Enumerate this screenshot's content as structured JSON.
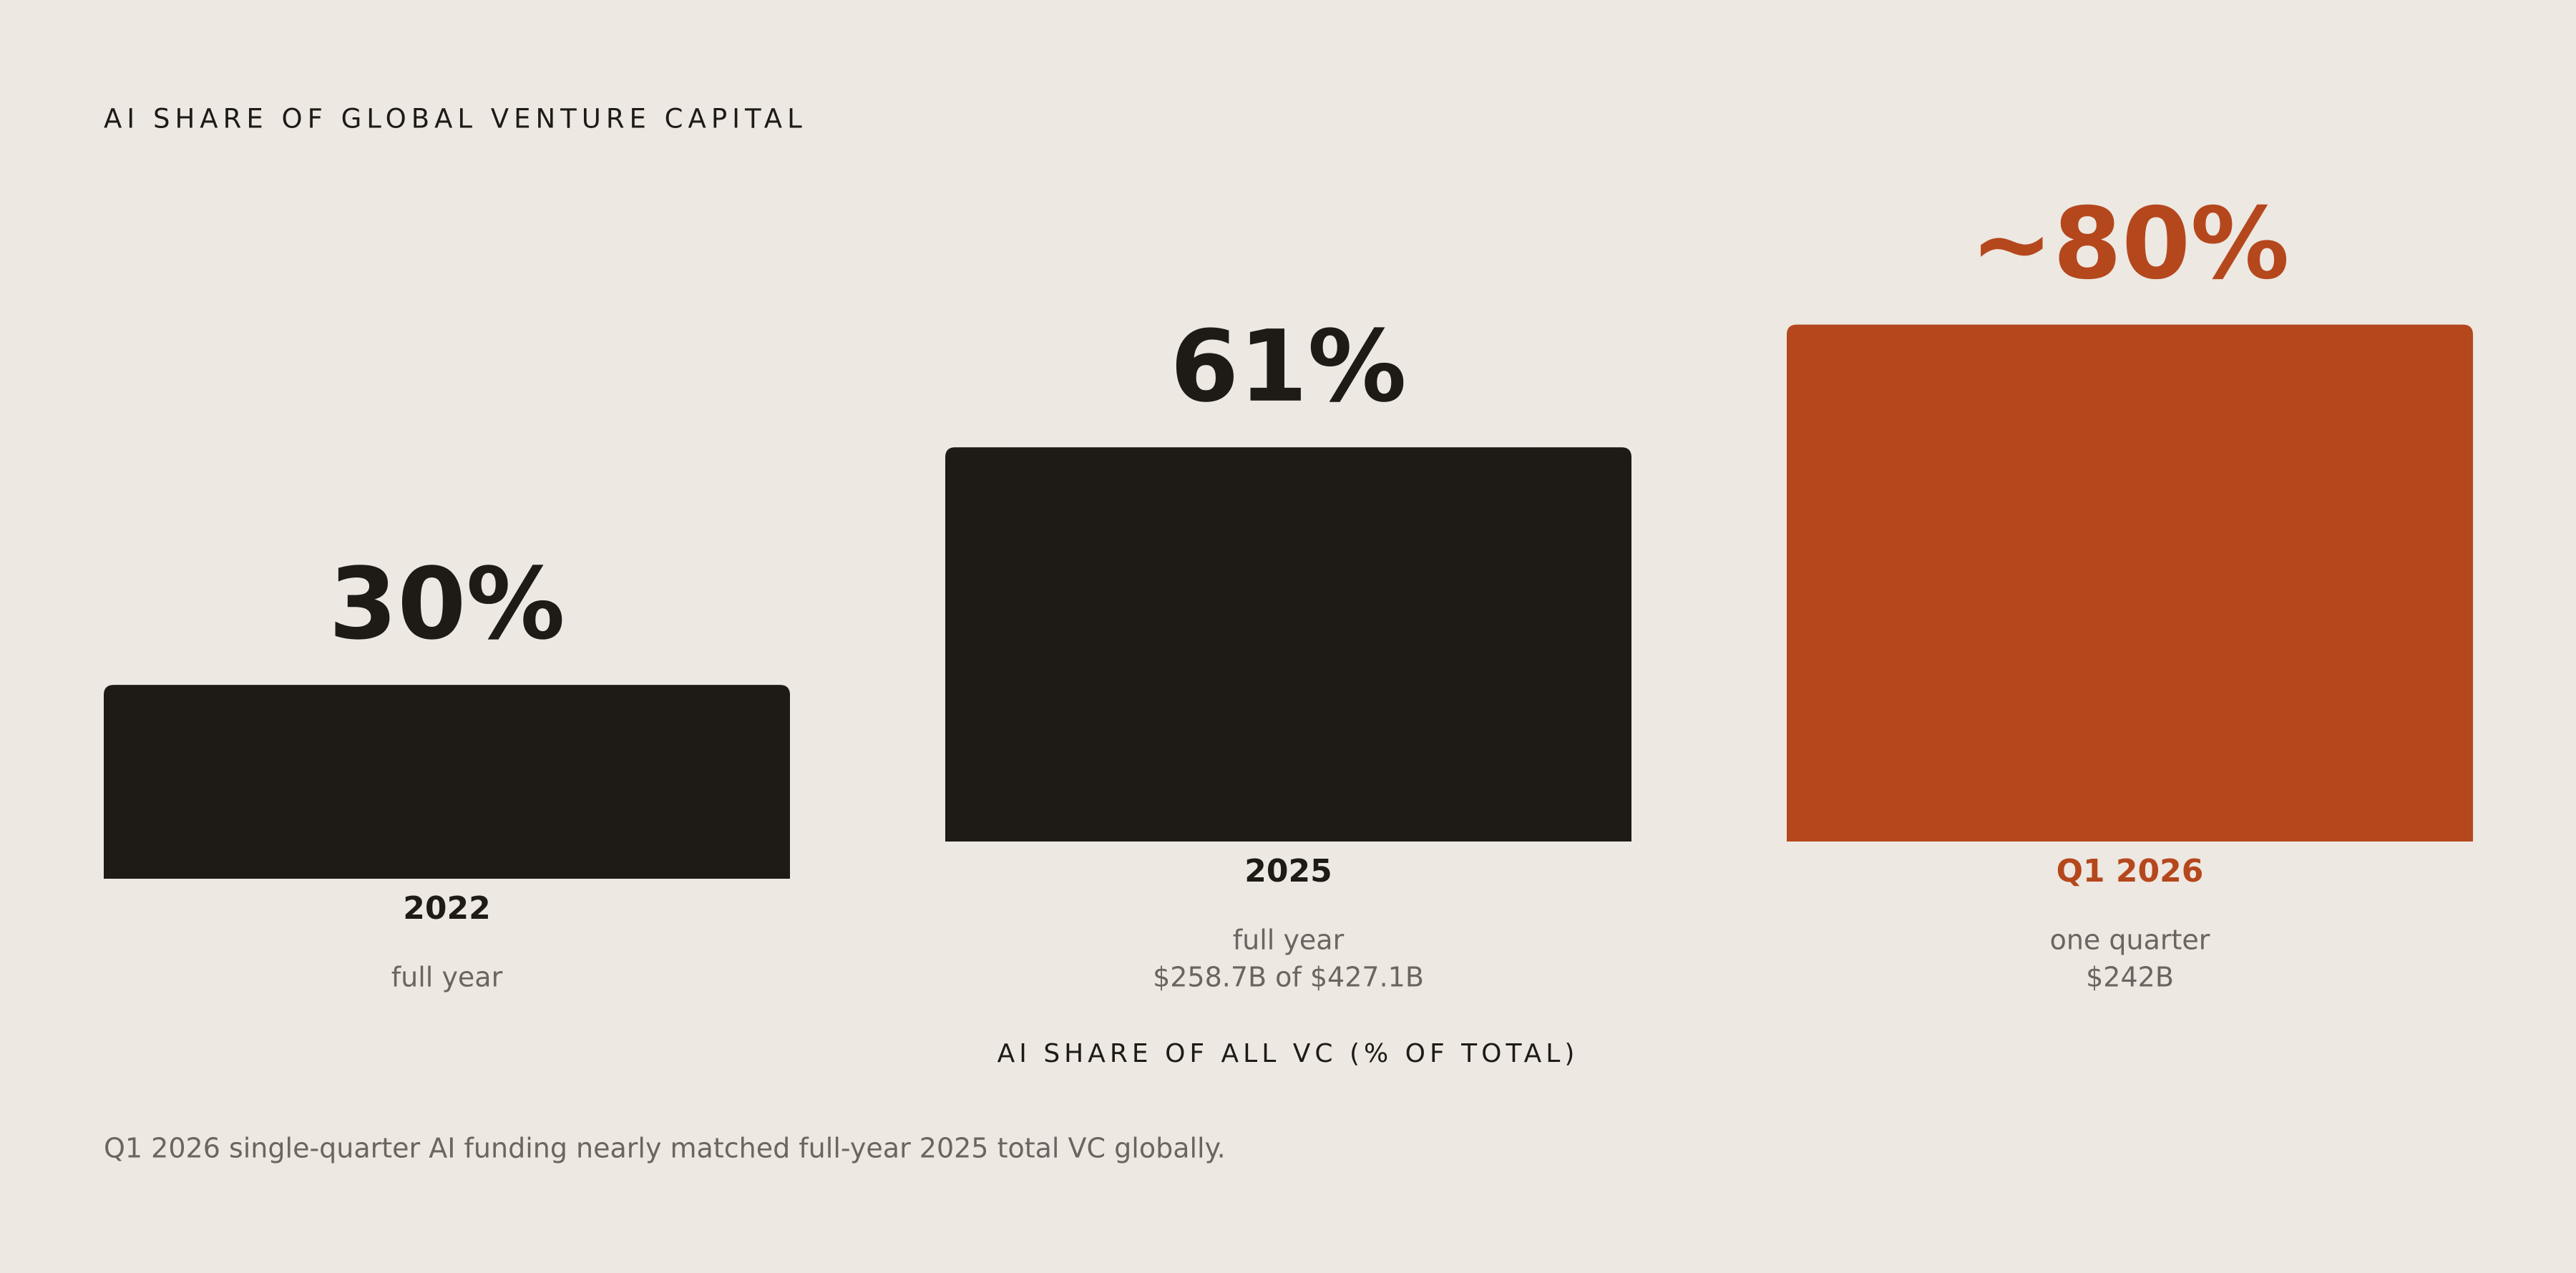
{
  "chart_data": {
    "type": "bar",
    "title": "AI SHARE OF GLOBAL VENTURE CAPITAL",
    "categories": [
      "2022",
      "2025",
      "Q1 2026"
    ],
    "values": [
      30,
      61,
      80
    ],
    "value_labels": [
      "30%",
      "61%",
      "~80%"
    ],
    "colors": [
      "#1e1b16",
      "#1e1b16",
      "#b5471d"
    ],
    "notes": [
      [
        "full year"
      ],
      [
        "full year",
        "$258.7B of $427.1B"
      ],
      [
        "one quarter",
        "$242B"
      ]
    ],
    "x_label": "AI SHARE OF ALL VC (% OF TOTAL)",
    "footnote": "Q1 2026 single-quarter AI funding nearly matched full-year 2025 total VC globally."
  }
}
